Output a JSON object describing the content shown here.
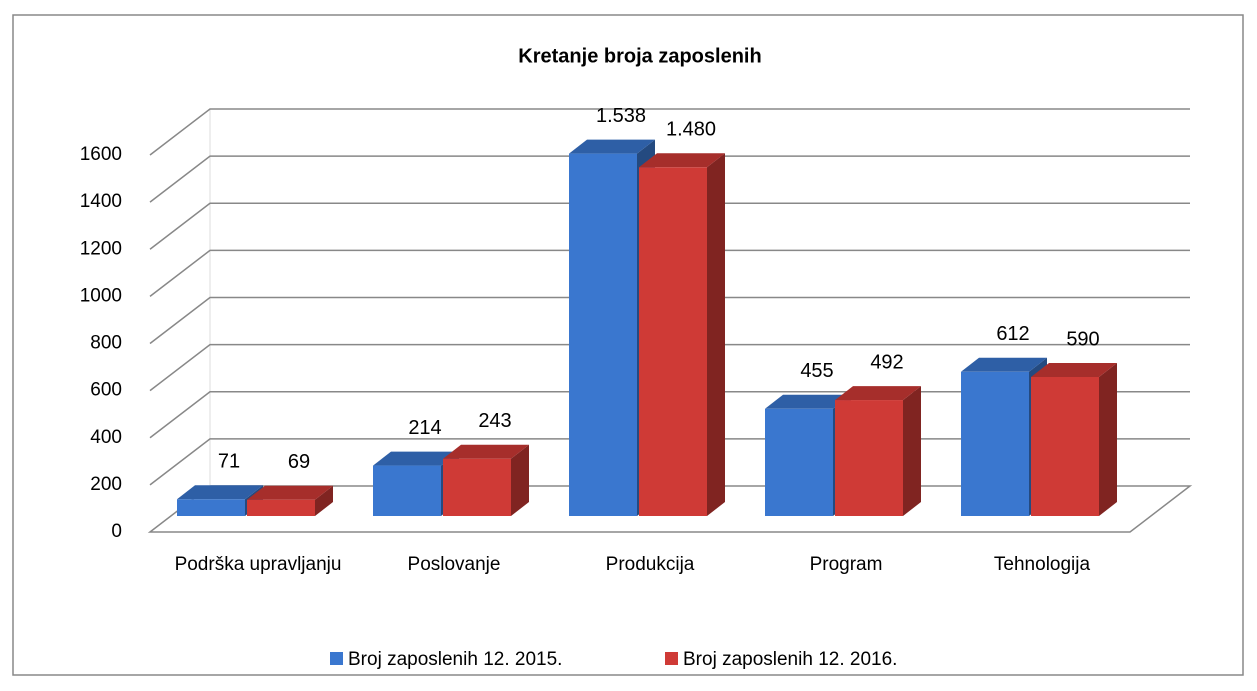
{
  "chart_data": {
    "type": "bar3d",
    "title": "Kretanje broja zaposlenih",
    "categories": [
      "Podrška upravljanju",
      "Poslovanje",
      "Produkcija",
      "Program",
      "Tehnologija"
    ],
    "series": [
      {
        "name": "Broj zaposlenih 12. 2015.",
        "color": "#3a77cf",
        "values": [
          71,
          214,
          1538,
          455,
          612
        ],
        "value_labels": [
          "71",
          "214",
          "1.538",
          "455",
          "612"
        ]
      },
      {
        "name": "Broj zaposlenih 12. 2016.",
        "color": "#cf3a36",
        "values": [
          69,
          243,
          1480,
          492,
          590
        ],
        "value_labels": [
          "69",
          "243",
          "1.480",
          "492",
          "590"
        ]
      }
    ],
    "ylim": [
      0,
      1600
    ],
    "yticks": [
      0,
      200,
      400,
      600,
      800,
      1000,
      1200,
      1400,
      1600
    ],
    "grid": true,
    "legend": "bottom"
  }
}
